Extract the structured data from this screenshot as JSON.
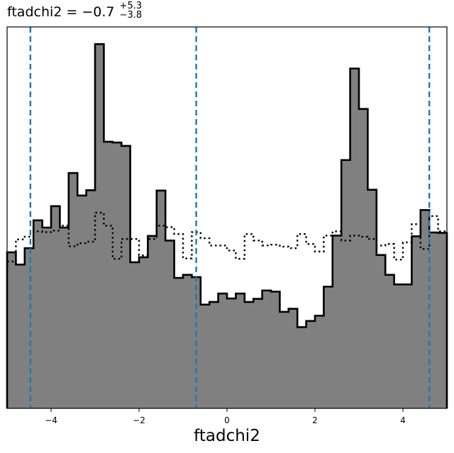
{
  "chart_data": {
    "type": "histogram",
    "title": "ftadchi2 = −0.7",
    "title_upper_error": "+5.3",
    "title_lower_error": "−3.8",
    "xlabel": "ftadchi2",
    "ylabel": "",
    "xlim": [
      -5,
      5
    ],
    "ylim": [
      0,
      1
    ],
    "xticks": [
      -4,
      -2,
      0,
      2,
      4
    ],
    "xtick_labels": [
      "−4",
      "−2",
      "0",
      "2",
      "4"
    ],
    "yticks": [],
    "bin_edges_start": -5,
    "bin_width": 0.2,
    "series": [
      {
        "style": "filled-gray-step",
        "values": [
          0.409,
          0.377,
          0.42,
          0.493,
          0.474,
          0.53,
          0.474,
          0.617,
          0.558,
          0.572,
          0.955,
          0.699,
          0.697,
          0.688,
          0.383,
          0.396,
          0.452,
          0.571,
          0.44,
          0.342,
          0.35,
          0.344,
          0.272,
          0.279,
          0.301,
          0.288,
          0.301,
          0.279,
          0.287,
          0.309,
          0.306,
          0.253,
          0.261,
          0.213,
          0.229,
          0.243,
          0.319,
          0.453,
          0.651,
          0.891,
          0.785,
          0.573,
          0.402,
          0.35,
          0.325,
          0.325,
          0.451,
          0.52,
          0.461,
          0.46
        ]
      },
      {
        "style": "dotted-step",
        "values": [
          0.385,
          0.443,
          0.45,
          0.464,
          0.462,
          0.466,
          0.479,
          0.425,
          0.433,
          0.437,
          0.513,
          0.479,
          0.392,
          0.444,
          0.444,
          0.401,
          0.444,
          0.479,
          0.475,
          0.457,
          0.393,
          0.462,
          0.446,
          0.427,
          0.427,
          0.414,
          0.392,
          0.457,
          0.44,
          0.427,
          0.429,
          0.424,
          0.42,
          0.457,
          0.431,
          0.411,
          0.453,
          0.464,
          0.44,
          0.453,
          0.45,
          0.444,
          0.427,
          0.431,
          0.39,
          0.435,
          0.483,
          0.418,
          0.504,
          0.464
        ]
      }
    ],
    "vlines": [
      -4.47,
      -0.7,
      4.6
    ],
    "vline_color": "#1f77b4",
    "fill_color": "#808080",
    "grid": false
  }
}
